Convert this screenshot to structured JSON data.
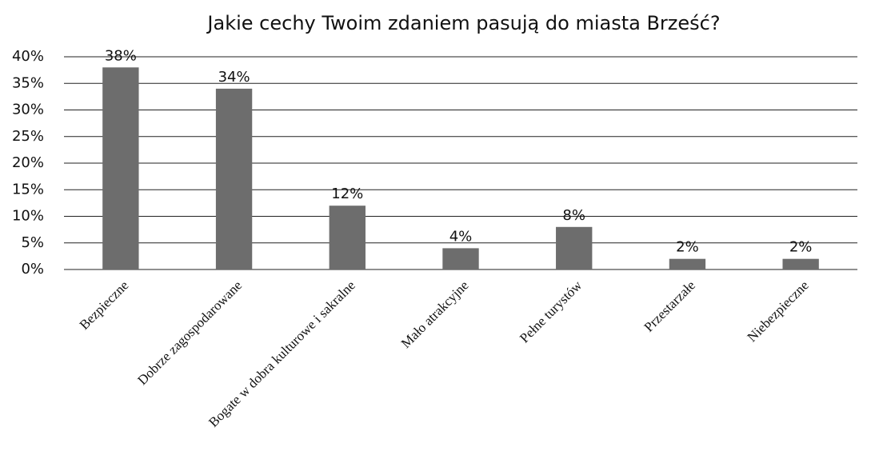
{
  "chart_data": {
    "type": "bar",
    "title": "Jakie cechy Twoim zdaniem pasują do miasta Brześć?",
    "categories": [
      "Bezpieczne",
      "Dobrze zagospodarowane",
      "Bogate w dobra kulturowe i sakralne",
      "Mało atrakcyjne",
      "Pełne turystów",
      "Przestarzałe",
      "Niebezpieczne"
    ],
    "values": [
      38,
      34,
      12,
      4,
      8,
      2,
      2
    ],
    "value_labels": [
      "38%",
      "34%",
      "12%",
      "4%",
      "8%",
      "2%",
      "2%"
    ],
    "color": "#6d6d6d",
    "ylim": [
      0,
      40
    ],
    "yticks": [
      {
        "value": 0,
        "label": "0%"
      },
      {
        "value": 5,
        "label": "5%"
      },
      {
        "value": 10,
        "label": "10%"
      },
      {
        "value": 15,
        "label": "15%"
      },
      {
        "value": 20,
        "label": "20%"
      },
      {
        "value": 25,
        "label": "25%"
      },
      {
        "value": 30,
        "label": "30%"
      },
      {
        "value": 35,
        "label": "35%"
      },
      {
        "value": 40,
        "label": "40%"
      }
    ],
    "grid": true
  }
}
